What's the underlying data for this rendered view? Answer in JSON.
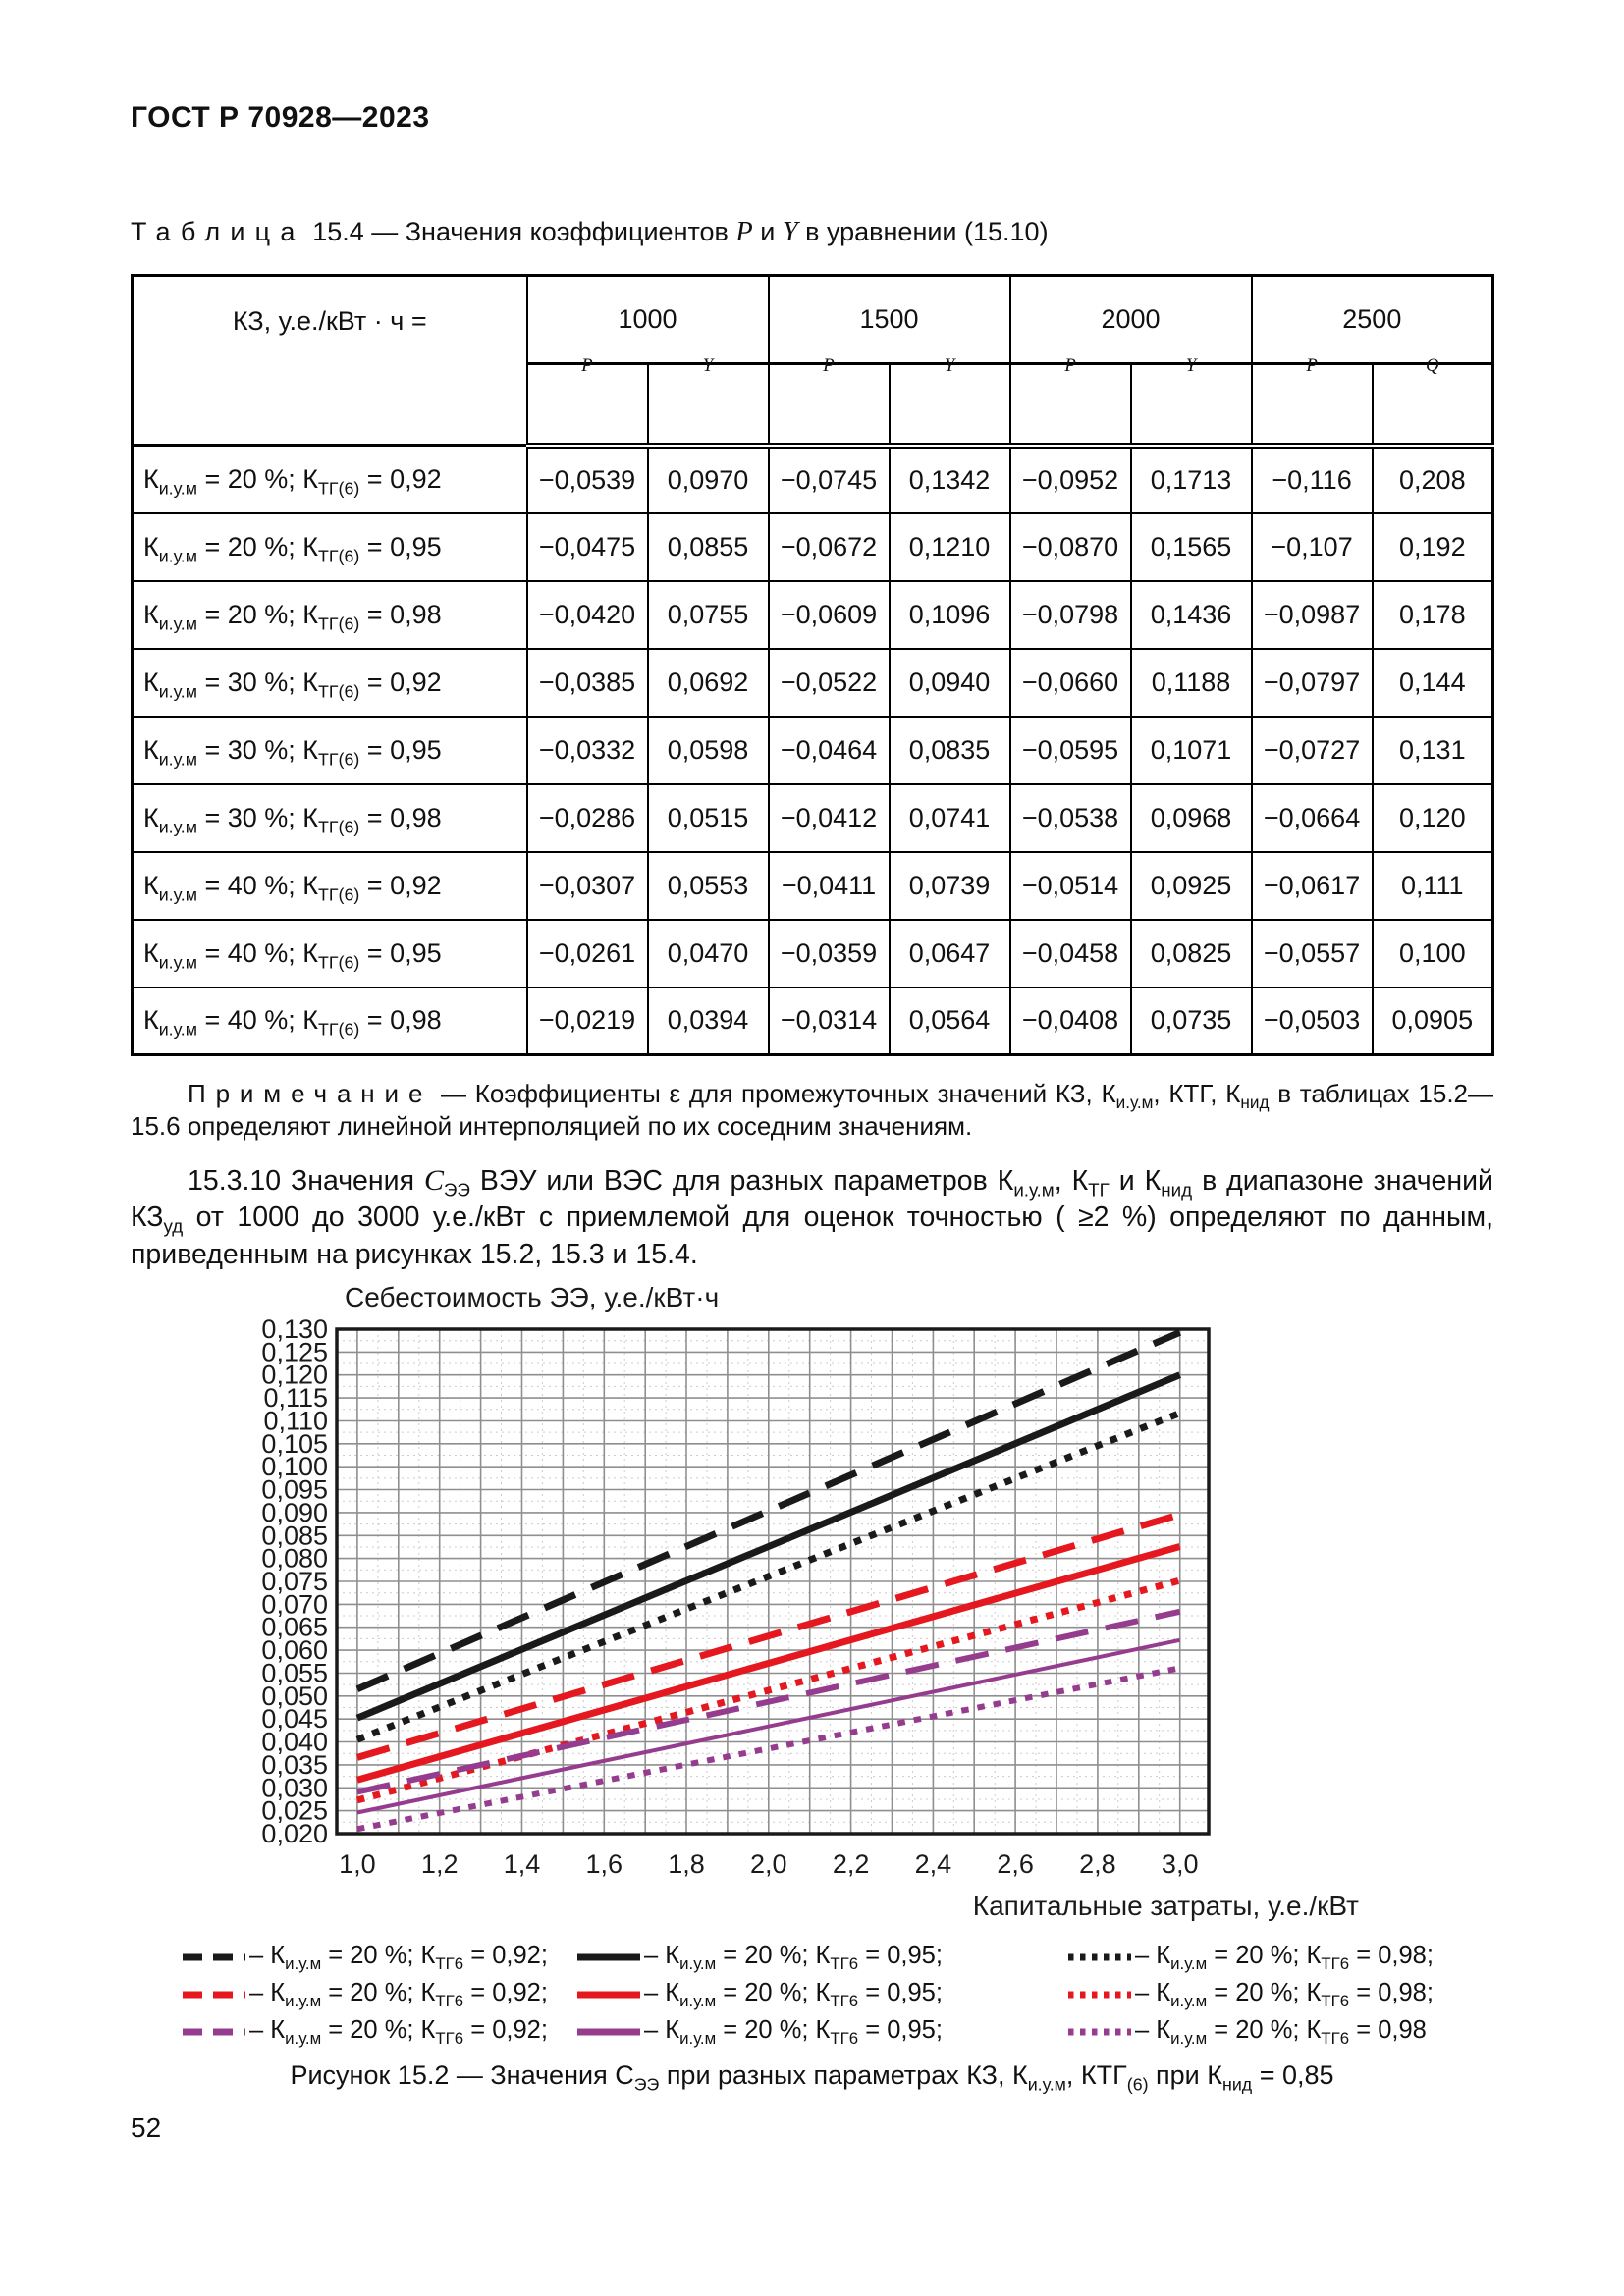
{
  "page": {
    "header": "ГОСТ Р 70928—2023",
    "number": "52"
  },
  "table": {
    "caption_segments": [
      {
        "t": "Таблица",
        "sp": true
      },
      {
        "t": "  15.4 — Значения коэффициентов "
      },
      {
        "t": "P",
        "i": true
      },
      {
        "t": " и "
      },
      {
        "t": "Y",
        "i": true
      },
      {
        "t": " в уравнении (15.10)"
      }
    ],
    "corner_label": "КЗ, у.е./кВт · ч =",
    "groups": [
      {
        "label": "1000",
        "cols": [
          "P",
          "Y"
        ]
      },
      {
        "label": "1500",
        "cols": [
          "P",
          "Y"
        ]
      },
      {
        "label": "2000",
        "cols": [
          "P",
          "Y"
        ]
      },
      {
        "label": "2500",
        "cols": [
          "P",
          "Q"
        ]
      }
    ],
    "rows": [
      {
        "label": [
          {
            "t": "К"
          },
          {
            "t": "и.у.м",
            "sub": true
          },
          {
            "t": " = 20 %; К"
          },
          {
            "t": "ТГ(6)",
            "sub": true
          },
          {
            "t": " = 0,92"
          }
        ],
        "values": [
          "−0,0539",
          "0,0970",
          "−0,0745",
          "0,1342",
          "−0,0952",
          "0,1713",
          "−0,116",
          "0,208"
        ]
      },
      {
        "label": [
          {
            "t": "К"
          },
          {
            "t": "и.у.м",
            "sub": true
          },
          {
            "t": " = 20 %; К"
          },
          {
            "t": "ТГ(6)",
            "sub": true
          },
          {
            "t": " = 0,95"
          }
        ],
        "values": [
          "−0,0475",
          "0,0855",
          "−0,0672",
          "0,1210",
          "−0,0870",
          "0,1565",
          "−0,107",
          "0,192"
        ]
      },
      {
        "label": [
          {
            "t": "К"
          },
          {
            "t": "и.у.м",
            "sub": true
          },
          {
            "t": " = 20 %; К"
          },
          {
            "t": "ТГ(6)",
            "sub": true
          },
          {
            "t": " = 0,98"
          }
        ],
        "values": [
          "−0,0420",
          "0,0755",
          "−0,0609",
          "0,1096",
          "−0,0798",
          "0,1436",
          "−0,0987",
          "0,178"
        ]
      },
      {
        "label": [
          {
            "t": "К"
          },
          {
            "t": "и.у.м",
            "sub": true
          },
          {
            "t": " = 30 %; К"
          },
          {
            "t": "ТГ(6)",
            "sub": true
          },
          {
            "t": " = 0,92"
          }
        ],
        "values": [
          "−0,0385",
          "0,0692",
          "−0,0522",
          "0,0940",
          "−0,0660",
          "0,1188",
          "−0,0797",
          "0,144"
        ]
      },
      {
        "label": [
          {
            "t": "К"
          },
          {
            "t": "и.у.м",
            "sub": true
          },
          {
            "t": " = 30 %; К"
          },
          {
            "t": "ТГ(6)",
            "sub": true
          },
          {
            "t": " = 0,95"
          }
        ],
        "values": [
          "−0,0332",
          "0,0598",
          "−0,0464",
          "0,0835",
          "−0,0595",
          "0,1071",
          "−0,0727",
          "0,131"
        ]
      },
      {
        "label": [
          {
            "t": "К"
          },
          {
            "t": "и.у.м",
            "sub": true
          },
          {
            "t": " = 30 %; К"
          },
          {
            "t": "ТГ(6)",
            "sub": true
          },
          {
            "t": " = 0,98"
          }
        ],
        "values": [
          "−0,0286",
          "0,0515",
          "−0,0412",
          "0,0741",
          "−0,0538",
          "0,0968",
          "−0,0664",
          "0,120"
        ]
      },
      {
        "label": [
          {
            "t": "К"
          },
          {
            "t": "и.у.м",
            "sub": true
          },
          {
            "t": " = 40 %; К"
          },
          {
            "t": "ТГ(6)",
            "sub": true
          },
          {
            "t": " = 0,92"
          }
        ],
        "values": [
          "−0,0307",
          "0,0553",
          "−0,0411",
          "0,0739",
          "−0,0514",
          "0,0925",
          "−0,0617",
          "0,111"
        ]
      },
      {
        "label": [
          {
            "t": "К"
          },
          {
            "t": "и.у.м",
            "sub": true
          },
          {
            "t": " = 40 %; К"
          },
          {
            "t": "ТГ(6)",
            "sub": true
          },
          {
            "t": " = 0,95"
          }
        ],
        "values": [
          "−0,0261",
          "0,0470",
          "−0,0359",
          "0,0647",
          "−0,0458",
          "0,0825",
          "−0,0557",
          "0,100"
        ]
      },
      {
        "label": [
          {
            "t": "К"
          },
          {
            "t": "и.у.м",
            "sub": true
          },
          {
            "t": " = 40 %; К"
          },
          {
            "t": "ТГ(6)",
            "sub": true
          },
          {
            "t": " = 0,98"
          }
        ],
        "values": [
          "−0,0219",
          "0,0394",
          "−0,0314",
          "0,0564",
          "−0,0408",
          "0,0735",
          "−0,0503",
          "0,0905"
        ]
      }
    ]
  },
  "note": {
    "segments": [
      {
        "t": "Примечание",
        "sp": true
      },
      {
        "t": " — Коэффициенты ε для промежуточных значений КЗ, К"
      },
      {
        "t": "и.у.м",
        "sub": true
      },
      {
        "t": ", КТГ, К"
      },
      {
        "t": "нид",
        "sub": true
      },
      {
        "t": " в таблицах 15.2—15.6 определяют линейной интерполяцией по их соседним значениям."
      }
    ]
  },
  "paragraph": {
    "segments": [
      {
        "t": "15.3.10  Значения "
      },
      {
        "t": "С",
        "i": true
      },
      {
        "t": "ЭЭ",
        "sub": true
      },
      {
        "t": " ВЭУ или ВЭС для разных параметров К"
      },
      {
        "t": "и.у.м",
        "sub": true
      },
      {
        "t": ", К"
      },
      {
        "t": "ТГ",
        "sub": true
      },
      {
        "t": " и К"
      },
      {
        "t": "нид",
        "sub": true
      },
      {
        "t": " в диапазоне значений КЗ"
      },
      {
        "t": "уд",
        "sub": true
      },
      {
        "t": " от 1000 до 3000 у.е./кВт с приемлемой для оценок точностью ( ≥2 %) определяют по данным, приведенным на рисунках 15.2, 15.3 и 15.4."
      }
    ]
  },
  "chart_data": {
    "type": "line",
    "y_axis_title": "Себестоимость ЭЭ, у.е./кВт·ч",
    "xlabel": "Капитальные затраты, у.е./кВт",
    "x_ticks": [
      "1,0",
      "1,2",
      "1,4",
      "1,6",
      "1,8",
      "2,0",
      "2,2",
      "2,4",
      "2,6",
      "2,8",
      "3,0"
    ],
    "y_ticks": [
      "0,130",
      "0,125",
      "0,120",
      "0,115",
      "0,110",
      "0,105",
      "0,100",
      "0,095",
      "0,090",
      "0,085",
      "0,080",
      "0,075",
      "0,070",
      "0,065",
      "0,060",
      "0,055",
      "0,050",
      "0,045",
      "0,040",
      "0,035",
      "0,030",
      "0,025",
      "0,020"
    ],
    "x_range": [
      0.95,
      3.07
    ],
    "y_range": [
      0.02,
      0.13
    ],
    "x_grid_step": 0.1,
    "y_grid_step": 0.005,
    "grid": "major solid + minor dotted",
    "legend_position": "below",
    "series": [
      {
        "name": "К_и.у.м = 20 %; К_ТГ6 = 0,92 (black dashed)",
        "color": "#1a1a1a",
        "dash": "dashed",
        "width": 7,
        "x": [
          1.0,
          3.0
        ],
        "y": [
          0.0515,
          0.1293
        ]
      },
      {
        "name": "К_и.у.м = 20 %; К_ТГ6 = 0,95 (black solid)",
        "color": "#1a1a1a",
        "dash": "solid",
        "width": 7,
        "x": [
          1.0,
          3.0
        ],
        "y": [
          0.0452,
          0.12
        ]
      },
      {
        "name": "К_и.у.м = 20 %; К_ТГ6 = 0,98 (black dotted)",
        "color": "#1a1a1a",
        "dash": "dotted",
        "width": 7,
        "x": [
          1.0,
          3.0
        ],
        "y": [
          0.0405,
          0.1117
        ]
      },
      {
        "name": "К_и.у.м = 20 %; К_ТГ6 = 0,92 (red dashed)",
        "color": "#e4181e",
        "dash": "dashed",
        "width": 7,
        "x": [
          1.0,
          3.0
        ],
        "y": [
          0.0366,
          0.0896
        ]
      },
      {
        "name": "К_и.у.м = 20 %; К_ТГ6 = 0,95 (red solid)",
        "color": "#e4181e",
        "dash": "solid",
        "width": 7,
        "x": [
          1.0,
          3.0
        ],
        "y": [
          0.0317,
          0.0826
        ]
      },
      {
        "name": "К_и.у.м = 20 %; К_ТГ6 = 0,98 (red dotted)",
        "color": "#e4181e",
        "dash": "dotted",
        "width": 7,
        "x": [
          1.0,
          3.0
        ],
        "y": [
          0.0273,
          0.0752
        ]
      },
      {
        "name": "К_и.у.м = 20 %; К_ТГ6 = 0,92 (purple dashed)",
        "color": "#963c8f",
        "dash": "dashed",
        "width": 6,
        "x": [
          1.0,
          3.0
        ],
        "y": [
          0.0291,
          0.0684
        ]
      },
      {
        "name": "К_и.у.м = 20 %; К_ТГ6 = 0,95 (purple solid)",
        "color": "#963c8f",
        "dash": "solid",
        "width": 4,
        "x": [
          1.0,
          3.0
        ],
        "y": [
          0.0246,
          0.0622
        ]
      },
      {
        "name": "К_и.у.м = 20 %; К_ТГ6 = 0,98 (purple dotted)",
        "color": "#963c8f",
        "dash": "dotted",
        "width": 6,
        "x": [
          1.0,
          3.0
        ],
        "y": [
          0.021,
          0.0561
        ]
      }
    ]
  },
  "legend": {
    "rows": [
      {
        "color": "#1a1a1a",
        "entries": [
          {
            "dash": "dashed",
            "segments": [
              {
                "t": "– К"
              },
              {
                "t": "и.у.м",
                "sub": true
              },
              {
                "t": " = 20 %; К"
              },
              {
                "t": "ТГ6",
                "sub": true
              },
              {
                "t": " = 0,92;"
              }
            ]
          },
          {
            "dash": "solid",
            "segments": [
              {
                "t": "– К"
              },
              {
                "t": "и.у.м",
                "sub": true
              },
              {
                "t": " = 20 %; К"
              },
              {
                "t": "ТГ6",
                "sub": true
              },
              {
                "t": " = 0,95;"
              }
            ]
          },
          {
            "dash": "dotted",
            "segments": [
              {
                "t": "– К"
              },
              {
                "t": "и.у.м",
                "sub": true
              },
              {
                "t": " = 20 %; К"
              },
              {
                "t": "ТГ6",
                "sub": true
              },
              {
                "t": " = 0,98;"
              }
            ]
          }
        ]
      },
      {
        "color": "#e4181e",
        "entries": [
          {
            "dash": "dashed",
            "segments": [
              {
                "t": "– К"
              },
              {
                "t": "и.у.м",
                "sub": true
              },
              {
                "t": " = 20 %; К"
              },
              {
                "t": "ТГ6",
                "sub": true
              },
              {
                "t": " = 0,92;"
              }
            ]
          },
          {
            "dash": "solid",
            "segments": [
              {
                "t": "– К"
              },
              {
                "t": "и.у.м",
                "sub": true
              },
              {
                "t": " = 20 %; К"
              },
              {
                "t": "ТГ6",
                "sub": true
              },
              {
                "t": " = 0,95;"
              }
            ]
          },
          {
            "dash": "dotted",
            "segments": [
              {
                "t": "– К"
              },
              {
                "t": "и.у.м",
                "sub": true
              },
              {
                "t": " = 20 %; К"
              },
              {
                "t": "ТГ6",
                "sub": true
              },
              {
                "t": " = 0,98;"
              }
            ]
          }
        ]
      },
      {
        "color": "#963c8f",
        "entries": [
          {
            "dash": "dashed",
            "segments": [
              {
                "t": "– К"
              },
              {
                "t": "и.у.м",
                "sub": true
              },
              {
                "t": " = 20 %; К"
              },
              {
                "t": "ТГ6",
                "sub": true
              },
              {
                "t": " = 0,92;"
              }
            ]
          },
          {
            "dash": "solid",
            "segments": [
              {
                "t": "– К"
              },
              {
                "t": "и.у.м",
                "sub": true
              },
              {
                "t": " = 20 %; К"
              },
              {
                "t": "ТГ6",
                "sub": true
              },
              {
                "t": " = 0,95;"
              }
            ]
          },
          {
            "dash": "dotted",
            "segments": [
              {
                "t": "– К"
              },
              {
                "t": "и.у.м",
                "sub": true
              },
              {
                "t": " = 20 %; К"
              },
              {
                "t": "ТГ6",
                "sub": true
              },
              {
                "t": " = 0,98"
              }
            ]
          }
        ]
      }
    ]
  },
  "figure": {
    "caption_segments": [
      {
        "t": "Рисунок 15.2 — Значения С"
      },
      {
        "t": "ЭЭ",
        "sub": true
      },
      {
        "t": " при разных параметрах КЗ, К"
      },
      {
        "t": "и.у.м",
        "sub": true
      },
      {
        "t": ", КТГ"
      },
      {
        "t": "(6)",
        "sub": true
      },
      {
        "t": " при К"
      },
      {
        "t": "нид",
        "sub": true
      },
      {
        "t": " = 0,85"
      }
    ]
  }
}
